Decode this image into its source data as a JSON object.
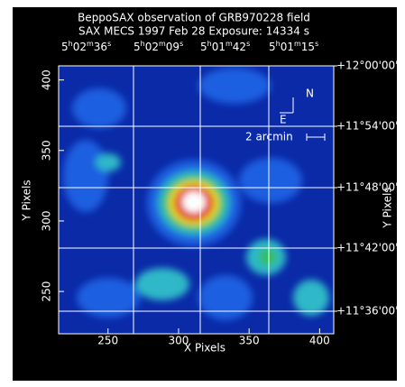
{
  "title": [
    "BeppoSAX observation of GRB970228 field",
    "SAX MECS    1997 Feb 28    Exposure: 14334 s"
  ],
  "ra_ticks": [
    [
      "5",
      "h",
      "02",
      "m",
      "36",
      "s"
    ],
    [
      "5",
      "h",
      "02",
      "m",
      "09",
      "s"
    ],
    [
      "5",
      "h",
      "01",
      "m",
      "42",
      "s"
    ],
    [
      "5",
      "h",
      "01",
      "m",
      "15",
      "s"
    ]
  ],
  "dec_ticks": [
    "+12°00'00'",
    "+11°54'00'",
    "+11°48'00'",
    "+11°42'00'",
    "+11°36'00'"
  ],
  "x_axis": {
    "label": "X Pixels",
    "ticks": [
      250,
      300,
      350,
      400
    ]
  },
  "y_axis": {
    "label": "Y Pixels",
    "ticks": [
      250,
      300,
      350,
      400
    ]
  },
  "right_label": "Y Pixels",
  "compass": {
    "north": "N",
    "east": "E",
    "scale": "2 arcmin"
  }
}
